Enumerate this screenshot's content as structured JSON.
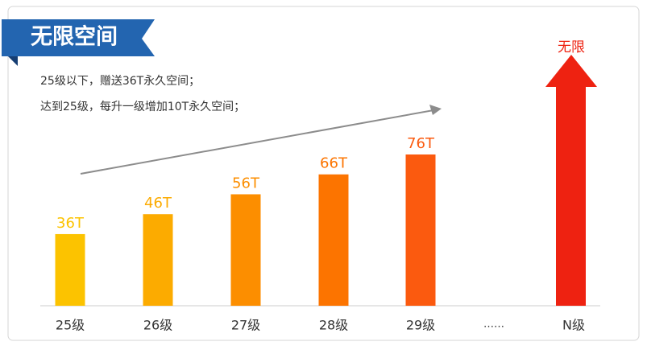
{
  "chart_data": {
    "type": "bar",
    "banner": "无限空间",
    "notes": [
      "25级以下，赠送36T永久空间；",
      "达到25级，每升一级增加10T永久空间；"
    ],
    "categories": [
      "25级",
      "26级",
      "27级",
      "28级",
      "29级"
    ],
    "values": [
      36,
      46,
      56,
      66,
      76
    ],
    "value_labels": [
      "36T",
      "46T",
      "56T",
      "66T",
      "76T"
    ],
    "colors": [
      "#fcc300",
      "#fcab00",
      "#fc8e00",
      "#fc7400",
      "#fb5a0f"
    ],
    "ellipsis": "……",
    "arrow_category": "N级",
    "arrow_label": "无限",
    "arrow_color": "#ee2211"
  }
}
